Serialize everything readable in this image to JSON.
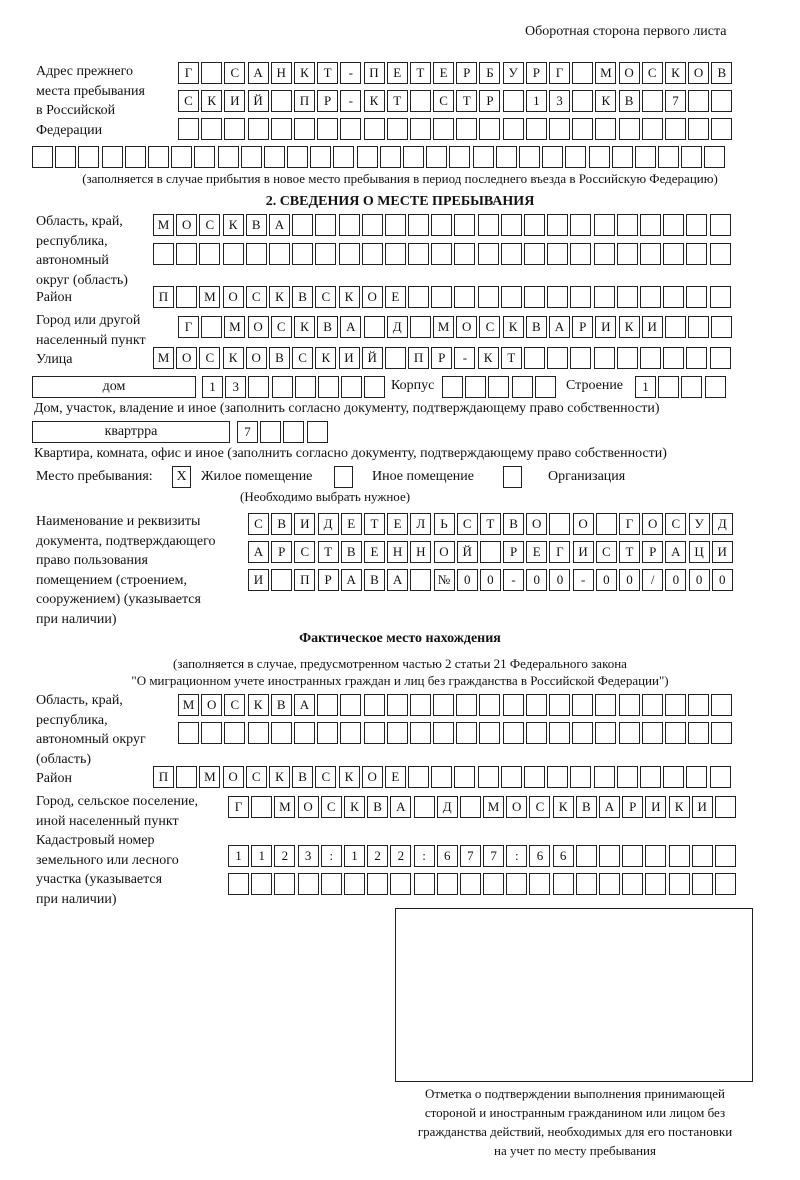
{
  "header": "Оборотная сторона первого листа",
  "previous_address": {
    "label": "Адрес прежнего\nместа пребывания\nв Российской\nФедерации",
    "rows": [
      "Г САНКТ-ПЕТЕРБУРГ МОСКОВ",
      "СКИЙ ПР-КТ СТР 13 КВ 7",
      "",
      ""
    ],
    "note": "(заполняется в случае прибытия в новое место пребывания в период последнего въезда в Российскую Федерацию)"
  },
  "section2": {
    "title": "2. СВЕДЕНИЯ О МЕСТЕ ПРЕБЫВАНИЯ",
    "region_label": "Область, край,\nреспублика,\nавтономный\nокруг (область)",
    "region_rows": [
      "МОСКВА",
      ""
    ],
    "district_label": "Район",
    "district": "П МОСКВСКОЕ",
    "city_label": "Город или другой\nнаселенный пункт",
    "city": "Г МОСКВА Д МОСКВАРИКИ",
    "street_label": "Улица",
    "street": "МОСКОВСКИЙ ПР-КТ",
    "house_type": "дом",
    "house": "13",
    "korpus_label": "Корпус",
    "korpus": "",
    "stroenie_label": "Строение",
    "stroenie": "1",
    "house_caption": "Дом, участок, владение и иное (заполнить согласно документу, подтверждающему право собственности)",
    "apt_type": "квартрра",
    "apt": "7",
    "apt_caption": "Квартира, комната, офис и иное (заполнить согласно документу, подтверждающему право собственности)",
    "stay_label": "Место пребывания:",
    "options": [
      {
        "label": "Жилое помещение",
        "checked": true,
        "mark": "Х"
      },
      {
        "label": "Иное помещение",
        "checked": false
      },
      {
        "label": "Организация",
        "checked": false
      }
    ],
    "choose_note": "(Необходимо выбрать нужное)",
    "doc_label": "Наименование и реквизиты\nдокумента, подтверждающего\nправо пользования\nпомещением (строением,\nсооружением) (указывается\nпри наличии)",
    "doc_rows": [
      "СВИДЕТЕЛЬСТВО О ГОСУД",
      "АРСТВЕННОЙ РЕГИСТРАЦИ",
      "И ПРАВА №00-00-00/000"
    ]
  },
  "actual": {
    "title": "Фактическое место нахождения",
    "note1": "(заполняется в случае, предусмотренном частью 2 статьи 21 Федерального закона",
    "note2": "\"О миграционном учете иностранных граждан и лиц без гражданства в Российской Федерации\")",
    "region_label": "Область, край,\nреспублика,\nавтономный округ\n(область)",
    "region_rows": [
      "МОСКВА",
      ""
    ],
    "district_label": "Район",
    "district": "П МОСКВСКОЕ",
    "city_label": "Город, сельское поселение,\nиной населенный пункт",
    "city": "Г МОСКВА Д МОСКВАРИКИ",
    "cadastral_label": "Кадастровый номер\nземельного или лесного\nучастка (указывается\nпри наличии)",
    "cadastral_rows": [
      "1123:122:677:66",
      ""
    ]
  },
  "stamp_caption": "Отметка о подтверждении выполнения принимающей\nстороной и иностранным гражданином или лицом без\nгражданства действий, необходимых для его постановки\nна учет по месту пребывания"
}
